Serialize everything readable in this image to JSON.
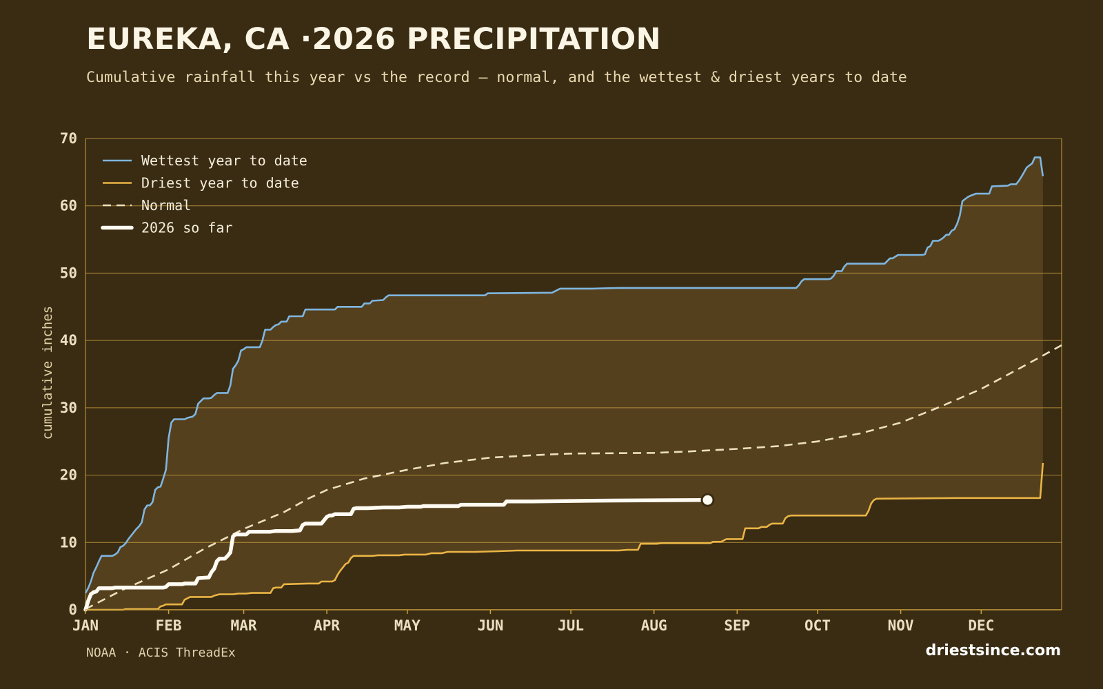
{
  "title": "EUREKA, CA ·2026 PRECIPITATION",
  "subtitle": "Cumulative rainfall this year vs the record — normal, and the wettest & driest years to date",
  "source": "NOAA · ACIS ThreadEx",
  "site": "driestsince.com",
  "colors": {
    "background": "#3a2c13",
    "band": "#55401e",
    "grid": "#c9a03e",
    "wettest": "#7fb6e0",
    "driest": "#eab545",
    "normal": "#ede0be",
    "current": "#fffbf2"
  },
  "chart_data": {
    "type": "line",
    "ylabel": "cumulative inches",
    "xlabel": "",
    "ylim": [
      0,
      70
    ],
    "xlim": [
      1,
      365
    ],
    "y_ticks": [
      0,
      10,
      20,
      30,
      40,
      50,
      60,
      70
    ],
    "x_ticks": [
      {
        "label": "JAN",
        "day": 1
      },
      {
        "label": "FEB",
        "day": 32
      },
      {
        "label": "MAR",
        "day": 60
      },
      {
        "label": "APR",
        "day": 91
      },
      {
        "label": "MAY",
        "day": 121
      },
      {
        "label": "JUN",
        "day": 152
      },
      {
        "label": "JUL",
        "day": 182
      },
      {
        "label": "AUG",
        "day": 213
      },
      {
        "label": "SEP",
        "day": 244
      },
      {
        "label": "OCT",
        "day": 274
      },
      {
        "label": "NOV",
        "day": 305
      },
      {
        "label": "DEC",
        "day": 335
      }
    ],
    "grid": true,
    "legend_position": "top-left",
    "band_between": [
      "Wettest year to date",
      "Driest year to date"
    ],
    "series": [
      {
        "name": "Wettest year to date",
        "style": "solid",
        "points": [
          [
            1,
            2.5
          ],
          [
            2,
            3.2
          ],
          [
            3,
            4.2
          ],
          [
            4,
            5.5
          ],
          [
            5,
            6.3
          ],
          [
            6,
            7.2
          ],
          [
            7,
            8.0
          ],
          [
            9,
            8.0
          ],
          [
            11,
            8.0
          ],
          [
            12,
            8.2
          ],
          [
            13,
            8.5
          ],
          [
            14,
            9.3
          ],
          [
            15,
            9.5
          ],
          [
            16,
            9.9
          ],
          [
            17,
            10.5
          ],
          [
            18,
            11.0
          ],
          [
            19,
            11.5
          ],
          [
            20,
            12.0
          ],
          [
            21,
            12.4
          ],
          [
            22,
            13.0
          ],
          [
            23,
            14.9
          ],
          [
            24,
            15.5
          ],
          [
            25,
            15.5
          ],
          [
            26,
            16.0
          ],
          [
            27,
            17.8
          ],
          [
            28,
            18.2
          ],
          [
            29,
            18.3
          ],
          [
            30,
            19.5
          ],
          [
            31,
            20.8
          ],
          [
            32,
            25.5
          ],
          [
            33,
            27.8
          ],
          [
            34,
            28.3
          ],
          [
            35,
            28.3
          ],
          [
            38,
            28.3
          ],
          [
            39,
            28.5
          ],
          [
            41,
            28.7
          ],
          [
            42,
            29.1
          ],
          [
            43,
            30.6
          ],
          [
            44,
            31.0
          ],
          [
            45,
            31.4
          ],
          [
            47,
            31.4
          ],
          [
            48,
            31.5
          ],
          [
            49,
            31.9
          ],
          [
            50,
            32.2
          ],
          [
            54,
            32.2
          ],
          [
            55,
            33.3
          ],
          [
            56,
            35.8
          ],
          [
            57,
            36.3
          ],
          [
            58,
            37.0
          ],
          [
            59,
            38.5
          ],
          [
            60,
            38.7
          ],
          [
            61,
            39.0
          ],
          [
            66,
            39.0
          ],
          [
            67,
            40.0
          ],
          [
            68,
            41.6
          ],
          [
            70,
            41.6
          ],
          [
            71,
            42.0
          ],
          [
            72,
            42.3
          ],
          [
            73,
            42.4
          ],
          [
            74,
            42.8
          ],
          [
            76,
            42.8
          ],
          [
            77,
            43.6
          ],
          [
            82,
            43.6
          ],
          [
            83,
            44.6
          ],
          [
            94,
            44.6
          ],
          [
            95,
            45.0
          ],
          [
            104,
            45.0
          ],
          [
            105,
            45.5
          ],
          [
            107,
            45.5
          ],
          [
            108,
            45.9
          ],
          [
            112,
            46.0
          ],
          [
            113,
            46.4
          ],
          [
            114,
            46.7
          ],
          [
            150,
            46.7
          ],
          [
            151,
            47.0
          ],
          [
            175,
            47.1
          ],
          [
            178,
            47.7
          ],
          [
            190,
            47.7
          ],
          [
            200,
            47.8
          ],
          [
            266,
            47.8
          ],
          [
            267,
            48.2
          ],
          [
            268,
            48.8
          ],
          [
            269,
            49.1
          ],
          [
            278,
            49.1
          ],
          [
            279,
            49.2
          ],
          [
            280,
            49.6
          ],
          [
            281,
            50.3
          ],
          [
            283,
            50.3
          ],
          [
            284,
            51.0
          ],
          [
            285,
            51.4
          ],
          [
            299,
            51.4
          ],
          [
            300,
            51.8
          ],
          [
            301,
            52.2
          ],
          [
            302,
            52.2
          ],
          [
            304,
            52.7
          ],
          [
            313,
            52.7
          ],
          [
            314,
            52.8
          ],
          [
            315,
            53.8
          ],
          [
            316,
            54.0
          ],
          [
            317,
            54.8
          ],
          [
            319,
            54.8
          ],
          [
            320,
            55.0
          ],
          [
            321,
            55.3
          ],
          [
            322,
            55.7
          ],
          [
            323,
            55.7
          ],
          [
            324,
            56.3
          ],
          [
            325,
            56.5
          ],
          [
            326,
            57.3
          ],
          [
            327,
            58.5
          ],
          [
            328,
            60.7
          ],
          [
            329,
            61.0
          ],
          [
            330,
            61.3
          ],
          [
            331,
            61.5
          ],
          [
            333,
            61.8
          ],
          [
            338,
            61.8
          ],
          [
            339,
            62.9
          ],
          [
            345,
            63.0
          ],
          [
            346,
            63.2
          ],
          [
            348,
            63.2
          ],
          [
            349,
            63.7
          ],
          [
            350,
            64.3
          ],
          [
            351,
            65.0
          ],
          [
            352,
            65.7
          ],
          [
            353,
            66.0
          ],
          [
            354,
            66.3
          ],
          [
            355,
            67.2
          ],
          [
            357,
            67.2
          ],
          [
            358,
            64.4
          ]
        ]
      },
      {
        "name": "Driest year to date",
        "style": "solid",
        "points": [
          [
            1,
            0
          ],
          [
            15,
            0
          ],
          [
            16,
            0.1
          ],
          [
            28,
            0.1
          ],
          [
            29,
            0.5
          ],
          [
            30,
            0.6
          ],
          [
            31,
            0.8
          ],
          [
            37,
            0.8
          ],
          [
            38,
            1.5
          ],
          [
            39,
            1.7
          ],
          [
            40,
            1.9
          ],
          [
            48,
            1.9
          ],
          [
            49,
            2.1
          ],
          [
            51,
            2.3
          ],
          [
            56,
            2.3
          ],
          [
            58,
            2.4
          ],
          [
            61,
            2.4
          ],
          [
            63,
            2.5
          ],
          [
            70,
            2.5
          ],
          [
            71,
            3.2
          ],
          [
            72,
            3.3
          ],
          [
            74,
            3.3
          ],
          [
            75,
            3.8
          ],
          [
            84,
            3.9
          ],
          [
            88,
            3.9
          ],
          [
            89,
            4.2
          ],
          [
            93,
            4.2
          ],
          [
            94,
            4.4
          ],
          [
            95,
            5.2
          ],
          [
            96,
            5.8
          ],
          [
            97,
            6.3
          ],
          [
            98,
            6.8
          ],
          [
            99,
            7.0
          ],
          [
            100,
            7.7
          ],
          [
            101,
            8.0
          ],
          [
            108,
            8.0
          ],
          [
            110,
            8.1
          ],
          [
            118,
            8.1
          ],
          [
            120,
            8.2
          ],
          [
            128,
            8.2
          ],
          [
            130,
            8.4
          ],
          [
            134,
            8.4
          ],
          [
            136,
            8.6
          ],
          [
            146,
            8.6
          ],
          [
            155,
            8.7
          ],
          [
            162,
            8.8
          ],
          [
            200,
            8.8
          ],
          [
            203,
            8.9
          ],
          [
            207,
            8.9
          ],
          [
            208,
            9.8
          ],
          [
            214,
            9.8
          ],
          [
            216,
            9.9
          ],
          [
            234,
            9.9
          ],
          [
            235,
            10.1
          ],
          [
            238,
            10.1
          ],
          [
            239,
            10.3
          ],
          [
            240,
            10.5
          ],
          [
            246,
            10.5
          ],
          [
            247,
            12.1
          ],
          [
            252,
            12.1
          ],
          [
            253,
            12.3
          ],
          [
            255,
            12.3
          ],
          [
            256,
            12.6
          ],
          [
            257,
            12.8
          ],
          [
            261,
            12.8
          ],
          [
            262,
            13.6
          ],
          [
            263,
            13.9
          ],
          [
            264,
            14.0
          ],
          [
            271,
            14.0
          ],
          [
            292,
            14.0
          ],
          [
            293,
            14.7
          ],
          [
            294,
            15.8
          ],
          [
            295,
            16.3
          ],
          [
            296,
            16.5
          ],
          [
            326,
            16.6
          ],
          [
            357,
            16.6
          ],
          [
            358,
            21.8
          ]
        ]
      },
      {
        "name": "Normal",
        "style": "dashed",
        "points": [
          [
            1,
            0.1
          ],
          [
            15,
            3.0
          ],
          [
            32,
            6.0
          ],
          [
            45,
            9.0
          ],
          [
            60,
            12.0
          ],
          [
            75,
            14.5
          ],
          [
            84,
            16.5
          ],
          [
            91,
            17.8
          ],
          [
            105,
            19.5
          ],
          [
            121,
            20.8
          ],
          [
            135,
            21.8
          ],
          [
            152,
            22.6
          ],
          [
            170,
            23.0
          ],
          [
            182,
            23.2
          ],
          [
            213,
            23.3
          ],
          [
            225,
            23.5
          ],
          [
            244,
            23.9
          ],
          [
            259,
            24.3
          ],
          [
            274,
            25.0
          ],
          [
            290,
            26.2
          ],
          [
            305,
            27.8
          ],
          [
            320,
            30.2
          ],
          [
            335,
            32.8
          ],
          [
            350,
            36.0
          ],
          [
            365,
            39.3
          ]
        ]
      },
      {
        "name": "2026 so far",
        "style": "bold",
        "end_marker": true,
        "points": [
          [
            1,
            0
          ],
          [
            2,
            1.3
          ],
          [
            3,
            2.3
          ],
          [
            4,
            2.6
          ],
          [
            5,
            2.7
          ],
          [
            6,
            3.2
          ],
          [
            8,
            3.2
          ],
          [
            10,
            3.2
          ],
          [
            11,
            3.2
          ],
          [
            12,
            3.3
          ],
          [
            30,
            3.3
          ],
          [
            31,
            3.4
          ],
          [
            32,
            3.8
          ],
          [
            36,
            3.8
          ],
          [
            37,
            3.8
          ],
          [
            38,
            3.9
          ],
          [
            42,
            3.9
          ],
          [
            43,
            4.7
          ],
          [
            47,
            4.8
          ],
          [
            48,
            5.6
          ],
          [
            49,
            6.1
          ],
          [
            50,
            7.2
          ],
          [
            51,
            7.6
          ],
          [
            53,
            7.6
          ],
          [
            54,
            8.0
          ],
          [
            55,
            8.5
          ],
          [
            56,
            10.9
          ],
          [
            57,
            11.2
          ],
          [
            61,
            11.2
          ],
          [
            62,
            11.6
          ],
          [
            66,
            11.6
          ],
          [
            70,
            11.6
          ],
          [
            72,
            11.7
          ],
          [
            78,
            11.7
          ],
          [
            81,
            11.8
          ],
          [
            82,
            12.6
          ],
          [
            83,
            12.8
          ],
          [
            89,
            12.8
          ],
          [
            90,
            13.3
          ],
          [
            91,
            13.8
          ],
          [
            92,
            14.0
          ],
          [
            93,
            14.0
          ],
          [
            94,
            14.2
          ],
          [
            100,
            14.2
          ],
          [
            101,
            15.0
          ],
          [
            102,
            15.1
          ],
          [
            105,
            15.1
          ],
          [
            106,
            15.1
          ],
          [
            112,
            15.2
          ],
          [
            118,
            15.2
          ],
          [
            121,
            15.3
          ],
          [
            126,
            15.3
          ],
          [
            127,
            15.4
          ],
          [
            140,
            15.4
          ],
          [
            141,
            15.6
          ],
          [
            157,
            15.6
          ],
          [
            158,
            16.1
          ],
          [
            168,
            16.1
          ],
          [
            190,
            16.2
          ],
          [
            233,
            16.3
          ]
        ]
      }
    ]
  }
}
